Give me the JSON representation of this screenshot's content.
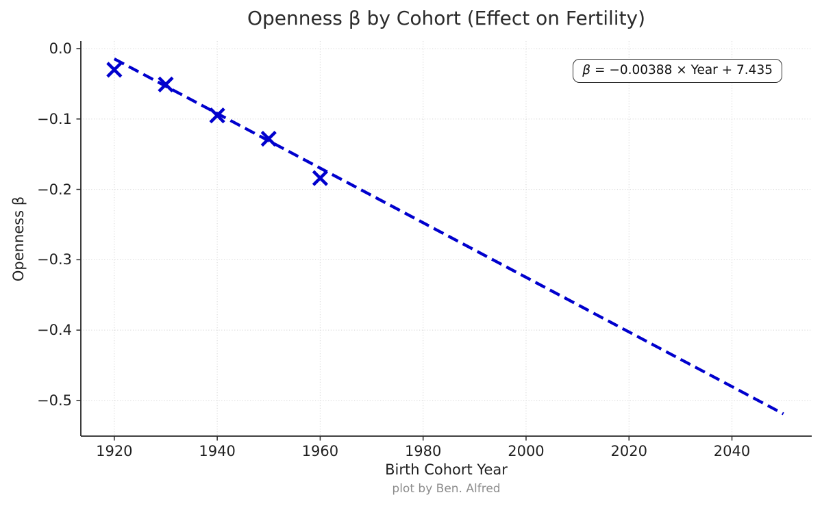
{
  "title": "Openness β by Cohort (Effect on Fertility)",
  "footer": "plot by Ben. Alfred",
  "chart_data": {
    "type": "scatter",
    "title": "Openness β by Cohort (Effect on Fertility)",
    "xlabel": "Birth Cohort Year",
    "ylabel": "Openness β",
    "points": {
      "x": [
        1920,
        1930,
        1940,
        1950,
        1960
      ],
      "y": [
        -0.03,
        -0.051,
        -0.095,
        -0.128,
        -0.184
      ]
    },
    "trend_line": {
      "label": "β = −0.00388 × Year + 7.435",
      "slope": -0.00388,
      "intercept": 7.435,
      "x_start": 1920,
      "x_end": 2050,
      "style": "dashed"
    },
    "xticks": [
      1920,
      1940,
      1960,
      1980,
      2000,
      2020,
      2040
    ],
    "xtick_labels": [
      "1920",
      "1940",
      "1960",
      "1980",
      "2000",
      "2020",
      "2040"
    ],
    "yticks": [
      0.0,
      -0.1,
      -0.2,
      -0.3,
      -0.4,
      -0.5
    ],
    "ytick_labels": [
      "0.0",
      "−0.1",
      "−0.2",
      "−0.3",
      "−0.4",
      "−0.5"
    ],
    "xlim": [
      1913.5,
      2055.5
    ],
    "ylim": [
      -0.5506,
      0.0107
    ],
    "grid": true,
    "legend": "none",
    "colors": {
      "series": "#0000cd",
      "grid": "#d9d9d9",
      "spine": "#262626",
      "text": "#1f1f1f",
      "footer": "#8c8c8c"
    },
    "annotation": {
      "beta": "β",
      "equation_rest": " = −0.00388 × Year + 7.435"
    }
  }
}
